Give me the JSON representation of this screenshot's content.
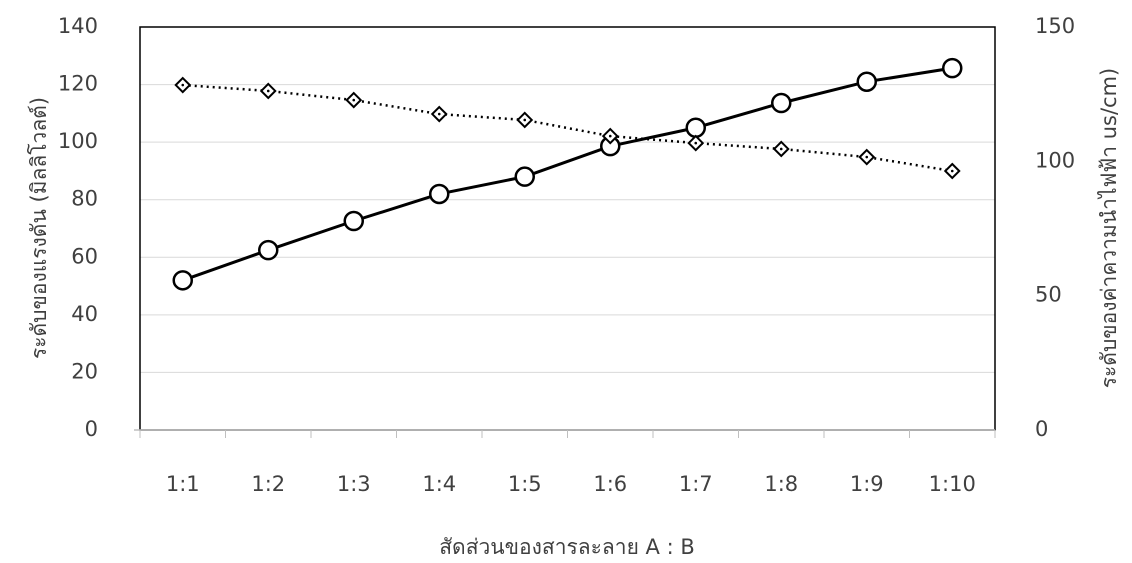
{
  "chart_data": {
    "type": "line",
    "x_label": "สัดส่วนของสารละลาย A : B",
    "y_label": "ระดับของแรงดัน (มิลลิโวลต์)",
    "y2_label": "ระดับของค่าความนำไฟฟ้า us/cm)",
    "categories": [
      "1:1",
      "1:2",
      "1:3",
      "1:4",
      "1:5",
      "1:6",
      "1:7",
      "1:8",
      "1:9",
      "1:10"
    ],
    "series": [
      {
        "color": "#000000",
        "line_style": "solid",
        "marker": "circle",
        "values": [
          52,
          62.5,
          72.6,
          82,
          88,
          98.6,
          105,
          113.6,
          121,
          125.7
        ]
      },
      {
        "color": "#000000",
        "line_style": "dotted",
        "marker": "diamond",
        "axis": "y2",
        "values": [
          128.4,
          126.2,
          122.8,
          117.6,
          115.4,
          109.4,
          106.8,
          104.6,
          101.6,
          96.4
        ]
      }
    ],
    "ylim": [
      0,
      140
    ],
    "yticks": [
      0,
      20,
      40,
      60,
      80,
      100,
      120,
      140
    ],
    "y2lim": [
      0,
      150
    ],
    "y2ticks": [
      0,
      50,
      100,
      150
    ],
    "grid": true
  }
}
